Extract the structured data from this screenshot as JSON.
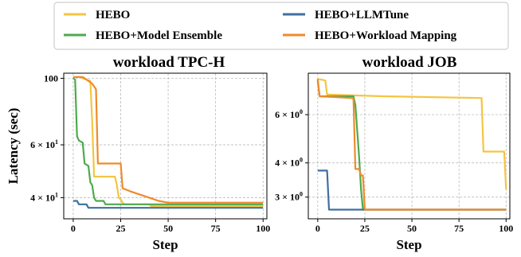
{
  "legend": [
    {
      "name": "HEBO",
      "color": "#f4c542"
    },
    {
      "name": "HEBO+Model Ensemble",
      "color": "#4daa4d"
    },
    {
      "name": "HEBO+LLMTune",
      "color": "#3f6fa0"
    },
    {
      "name": "HEBO+Workload Mapping",
      "color": "#f08a2a"
    }
  ],
  "chart_data": [
    {
      "type": "line",
      "title": "workload TPC-H",
      "xlabel": "Step",
      "ylabel": "Latency (sec)",
      "xlim": [
        -5,
        102
      ],
      "ylim": [
        34,
        104
      ],
      "yscale": "log",
      "grid": true,
      "xticks": [
        "0",
        "25",
        "50",
        "75",
        "100"
      ],
      "yticks": [
        {
          "value": 100,
          "base": "100",
          "exp": ""
        },
        {
          "value": 60,
          "base": "6 × 10",
          "exp": "1"
        },
        {
          "value": 40,
          "base": "4 × 10",
          "exp": "1"
        }
      ],
      "series": [
        {
          "name": "HEBO",
          "color": "#f4c542",
          "points": [
            [
              0,
              101
            ],
            [
              4,
              101
            ],
            [
              5,
              100
            ],
            [
              9,
              98
            ],
            [
              10,
              72
            ],
            [
              11,
              47
            ],
            [
              22,
              47
            ],
            [
              23,
              44
            ],
            [
              24,
              40
            ],
            [
              25,
              39.5
            ],
            [
              26,
              38.5
            ],
            [
              27,
              38
            ],
            [
              40,
              38
            ],
            [
              41,
              37.5
            ],
            [
              100,
              37.5
            ]
          ]
        },
        {
          "name": "HEBO+Model Ensemble",
          "color": "#4daa4d",
          "points": [
            [
              0,
              100
            ],
            [
              1,
              99
            ],
            [
              2,
              64
            ],
            [
              3,
              62
            ],
            [
              5,
              61
            ],
            [
              6,
              52
            ],
            [
              8,
              51
            ],
            [
              9,
              45
            ],
            [
              10,
              44
            ],
            [
              11,
              40
            ],
            [
              12,
              39
            ],
            [
              16,
              39
            ],
            [
              17,
              38
            ],
            [
              100,
              38
            ]
          ]
        },
        {
          "name": "HEBO+LLMTune",
          "color": "#3f6fa0",
          "points": [
            [
              0,
              39
            ],
            [
              2,
              39
            ],
            [
              3,
              38
            ],
            [
              7,
              38
            ],
            [
              8,
              37
            ],
            [
              100,
              37
            ]
          ]
        },
        {
          "name": "HEBO+Workload Mapping",
          "color": "#f08a2a",
          "points": [
            [
              0,
              101
            ],
            [
              5,
              101
            ],
            [
              6,
              100
            ],
            [
              10,
              96
            ],
            [
              12,
              92
            ],
            [
              13,
              52
            ],
            [
              25,
              52
            ],
            [
              26,
              43
            ],
            [
              30,
              42
            ],
            [
              35,
              41
            ],
            [
              40,
              40
            ],
            [
              45,
              39
            ],
            [
              50,
              38.5
            ],
            [
              100,
              38.5
            ]
          ]
        }
      ]
    },
    {
      "type": "line",
      "title": "workload JOB",
      "xlabel": "Step",
      "ylabel": "",
      "xlim": [
        -5,
        102
      ],
      "ylim": [
        2.5,
        8.5
      ],
      "yscale": "log",
      "grid": true,
      "xticks": [
        "0",
        "25",
        "50",
        "75",
        "100"
      ],
      "yticks": [
        {
          "value": 6,
          "base": "6 × 10",
          "exp": "0"
        },
        {
          "value": 4,
          "base": "4 × 10",
          "exp": "0"
        },
        {
          "value": 3,
          "base": "3 × 10",
          "exp": "0"
        }
      ],
      "series": [
        {
          "name": "HEBO",
          "color": "#f4c542",
          "points": [
            [
              0,
              8.1
            ],
            [
              4,
              8.0
            ],
            [
              5,
              7.1
            ],
            [
              35,
              7.0
            ],
            [
              87,
              6.9
            ],
            [
              88,
              4.4
            ],
            [
              99,
              4.4
            ],
            [
              100,
              3.2
            ]
          ]
        },
        {
          "name": "HEBO+Model Ensemble",
          "color": "#4daa4d",
          "points": [
            [
              0,
              8.0
            ],
            [
              1,
              7.0
            ],
            [
              19,
              7.0
            ],
            [
              20,
              6.5
            ],
            [
              22,
              4.2
            ],
            [
              23,
              3.2
            ],
            [
              24,
              2.7
            ],
            [
              100,
              2.7
            ]
          ]
        },
        {
          "name": "HEBO+LLMTune",
          "color": "#3f6fa0",
          "points": [
            [
              0,
              3.75
            ],
            [
              5,
              3.75
            ],
            [
              6,
              2.7
            ],
            [
              100,
              2.7
            ]
          ]
        },
        {
          "name": "HEBO+Workload Mapping",
          "color": "#f08a2a",
          "points": [
            [
              0,
              8.1
            ],
            [
              1,
              7.0
            ],
            [
              18,
              6.9
            ],
            [
              19,
              6.85
            ],
            [
              20,
              3.8
            ],
            [
              22,
              3.8
            ],
            [
              23,
              3.6
            ],
            [
              24,
              3.6
            ],
            [
              25,
              2.7
            ],
            [
              100,
              2.7
            ]
          ]
        }
      ]
    }
  ]
}
